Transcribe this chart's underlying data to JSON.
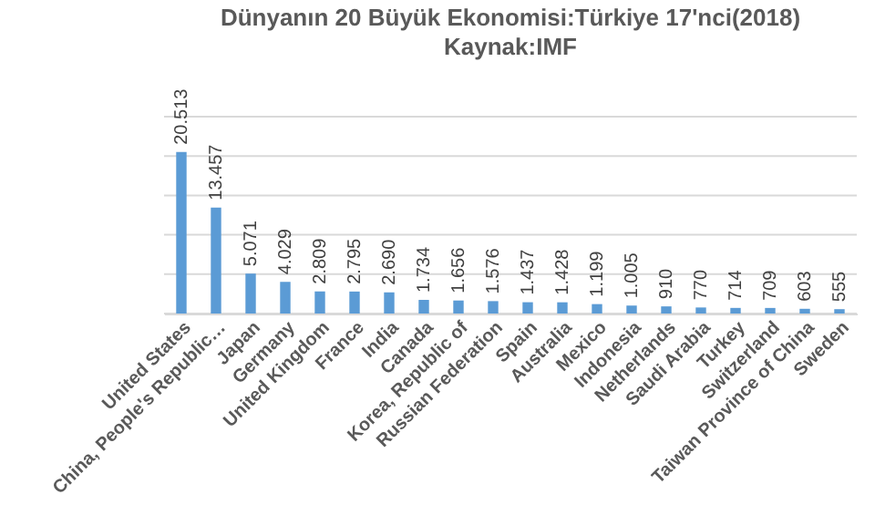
{
  "chart_data": {
    "type": "bar",
    "title": "Dünyanın 20 Büyük Ekonomisi:Türkiye 17'nci(2018)",
    "subtitle": "Kaynak:IMF",
    "categories": [
      "United States",
      "China, People's Republic…",
      "Japan",
      "Germany",
      "United Kingdom",
      "France",
      "India",
      "Canada",
      "Korea, Republic of",
      "Russian Federation",
      "Spain",
      "Australia",
      "Mexico",
      "Indonesia",
      "Netherlands",
      "Saudi Arabia",
      "Turkey",
      "Switzerland",
      "Taiwan Province of China",
      "Sweden"
    ],
    "values": [
      20513,
      13457,
      5071,
      4029,
      2809,
      2795,
      2690,
      1734,
      1656,
      1576,
      1437,
      1428,
      1199,
      1005,
      910,
      770,
      714,
      709,
      603,
      555
    ],
    "value_labels": [
      "20.513",
      "13.457",
      "5.071",
      "4.029",
      "2.809",
      "2.795",
      "2.690",
      "1.734",
      "1.656",
      "1.576",
      "1.437",
      "1.428",
      "1.199",
      "1.005",
      "910",
      "770",
      "714",
      "709",
      "603",
      "555"
    ],
    "color": "#5b9bd5",
    "ylim": [
      0,
      25000
    ],
    "yticks": [
      {
        "value": 0,
        "label": null
      },
      {
        "value": 5000,
        "label": null
      },
      {
        "value": 10000,
        "label": null
      },
      {
        "value": 15000,
        "label": null
      },
      {
        "value": 20000,
        "label": null
      },
      {
        "value": 25000,
        "label": null
      }
    ],
    "grid": true,
    "tick_labels": "x"
  }
}
